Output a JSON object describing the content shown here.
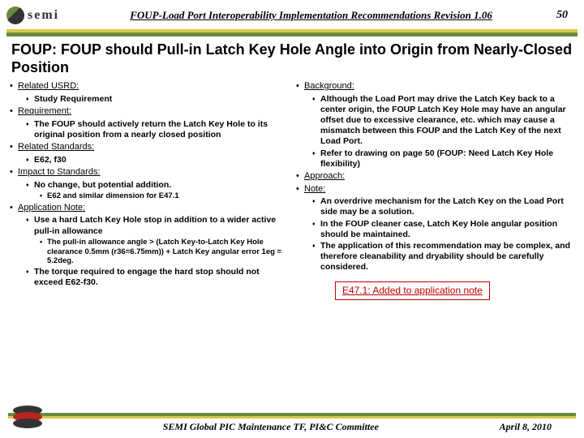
{
  "header": {
    "logo_text": "semi",
    "doc_title": "FOUP-Load Port Interoperability Implementation Recommendations Revision 1.06",
    "page_number": "50"
  },
  "title": "FOUP: FOUP should Pull-in Latch Key Hole Angle into Origin from Nearly-Closed Position",
  "left": {
    "s1": {
      "h": "Related USRD:",
      "i1": "Study Requirement"
    },
    "s2": {
      "h": "Requirement:",
      "i1": "The FOUP should actively return the Latch Key Hole to its original position from a nearly closed position"
    },
    "s3": {
      "h": "Related Standards:",
      "i1": "E62, f30"
    },
    "s4": {
      "h": "Impact to Standards:",
      "i1": "No change, but potential addition.",
      "i2": "E62 and similar dimension for E47.1"
    },
    "s5": {
      "h": "Application Note:",
      "i1": "Use a hard Latch Key Hole stop in addition to a wider active pull-in allowance",
      "i2": "The pull-in allowance angle > (Latch Key-to-Latch Key Hole clearance 0.5mm (r36=6.75mm)) + Latch Key angular error 1eg = 5.2deg.",
      "i3": "The torque required to engage the hard stop should not exceed E62-f30."
    }
  },
  "right": {
    "s1": {
      "h": "Background:",
      "i1": "Although the Load Port may drive the Latch Key back to a center origin, the FOUP Latch Key Hole may have an angular offset due to excessive clearance, etc. which may cause a mismatch between this FOUP and the Latch Key of the next Load Port.",
      "i2": "Refer  to drawing on page 50 (FOUP: Need Latch Key Hole flexibility)"
    },
    "s2": {
      "h": "Approach:"
    },
    "s3": {
      "h": "Note:",
      "i1": "An overdrive mechanism for the Latch Key on the Load Port side may be a solution.",
      "i2": "In the FOUP cleaner case, Latch Key Hole angular position should be maintained.",
      "i3": "The application of this recommendation may be complex, and therefore cleanability and dryability should be carefully considered."
    }
  },
  "redbox": "E47.1: Added to application note",
  "footer": {
    "committee": "SEMI Global PIC Maintenance TF, PI&C Committee",
    "date": "April 8, 2010"
  }
}
